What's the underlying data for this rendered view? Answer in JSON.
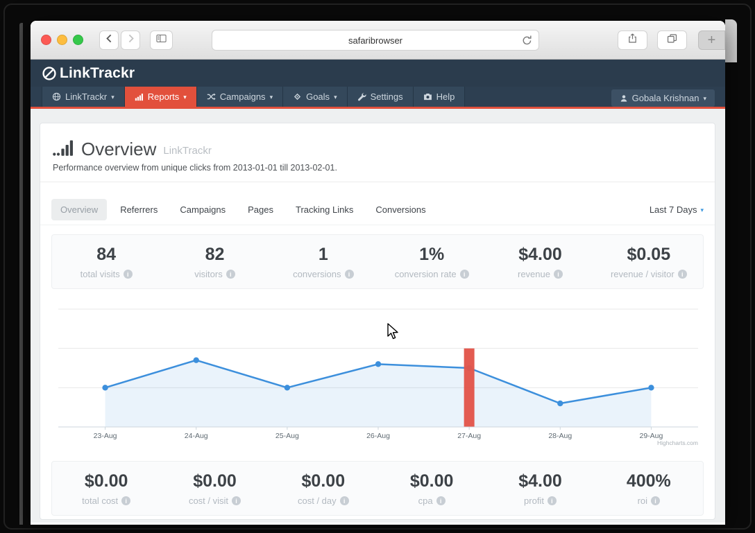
{
  "browser": {
    "address": "safaribrowser",
    "new_tab_label": "+"
  },
  "app": {
    "logo": "LinkTrackr",
    "nav": [
      {
        "label": "LinkTrackr",
        "icon": "globe",
        "caret": true,
        "active": false
      },
      {
        "label": "Reports",
        "icon": "bar-chart",
        "caret": true,
        "active": true
      },
      {
        "label": "Campaigns",
        "icon": "shuffle",
        "caret": true,
        "active": false
      },
      {
        "label": "Goals",
        "icon": "diamond",
        "caret": true,
        "active": false
      },
      {
        "label": "Settings",
        "icon": "wrench",
        "caret": false,
        "active": false
      },
      {
        "label": "Help",
        "icon": "camera",
        "caret": false,
        "active": false
      }
    ],
    "user_name": "Gobala Krishnan"
  },
  "page": {
    "title": "Overview",
    "title_suffix": "LinkTrackr",
    "subtitle": "Performance overview from unique clicks from 2013-01-01 till 2013-02-01.",
    "tabs": [
      "Overview",
      "Referrers",
      "Campaigns",
      "Pages",
      "Tracking Links",
      "Conversions"
    ],
    "active_tab": "Overview",
    "date_range": "Last 7 Days"
  },
  "stats_top": [
    {
      "value": "84",
      "label": "total visits"
    },
    {
      "value": "82",
      "label": "visitors"
    },
    {
      "value": "1",
      "label": "conversions"
    },
    {
      "value": "1%",
      "label": "conversion rate"
    },
    {
      "value": "$4.00",
      "label": "revenue"
    },
    {
      "value": "$0.05",
      "label": "revenue / visitor"
    }
  ],
  "stats_bottom": [
    {
      "value": "$0.00",
      "label": "total cost"
    },
    {
      "value": "$0.00",
      "label": "cost / visit"
    },
    {
      "value": "$0.00",
      "label": "cost / day"
    },
    {
      "value": "$0.00",
      "label": "cpa"
    },
    {
      "value": "$4.00",
      "label": "profit"
    },
    {
      "value": "400%",
      "label": "roi"
    }
  ],
  "chart_data": {
    "type": "line",
    "title": "",
    "xlabel": "",
    "ylabel": "",
    "categories": [
      "23-Aug",
      "24-Aug",
      "25-Aug",
      "26-Aug",
      "27-Aug",
      "28-Aug",
      "29-Aug"
    ],
    "series": [
      {
        "name": "visits",
        "type": "area-line",
        "color": "#3c8fdc",
        "values": [
          10,
          17,
          10,
          16,
          15,
          6,
          10
        ]
      },
      {
        "name": "highlight-column",
        "type": "column",
        "color": "#e2544a",
        "points": [
          {
            "category": "27-Aug",
            "value": 20
          }
        ]
      }
    ],
    "ylim": [
      0,
      30
    ],
    "grid_step": 10,
    "grid": true,
    "y_tick_labels_visible": false,
    "legend": "none",
    "credit": "Highcharts.com"
  },
  "colors": {
    "header_bg": "#2b3c4d",
    "accent_red": "#e2503c",
    "line_blue": "#3c8fdc",
    "column_red": "#e2544a",
    "page_bg": "#eef0f1"
  }
}
